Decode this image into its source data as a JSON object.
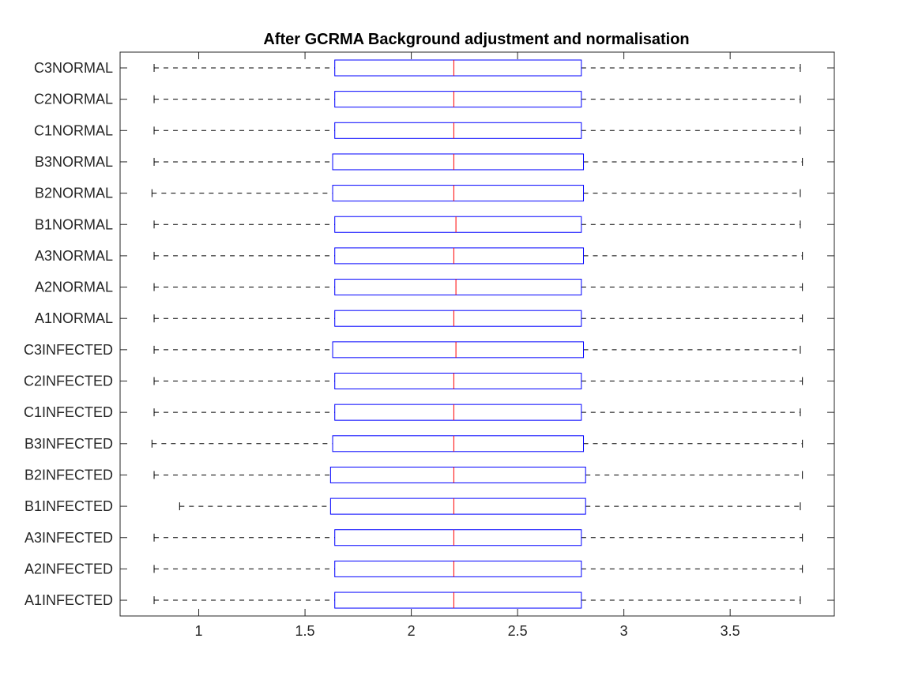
{
  "chart_data": {
    "type": "boxplot",
    "orientation": "horizontal",
    "title": "After GCRMA Background adjustment and normalisation",
    "xlabel": "",
    "ylabel": "",
    "xlim": [
      0.63,
      3.99
    ],
    "xticks": [
      1,
      1.5,
      2,
      2.5,
      3,
      3.5
    ],
    "xtick_labels": [
      "1",
      "1.5",
      "2",
      "2.5",
      "3",
      "3.5"
    ],
    "grid": false,
    "colors": {
      "box": "#0000ff",
      "median": "#ff0000",
      "whisker": "#000000",
      "axis": "#262626"
    },
    "categories": [
      "C3NORMAL",
      "C2NORMAL",
      "C1NORMAL",
      "B3NORMAL",
      "B2NORMAL",
      "B1NORMAL",
      "A3NORMAL",
      "A2NORMAL",
      "A1NORMAL",
      "C3INFECTED",
      "C2INFECTED",
      "C1INFECTED",
      "B3INFECTED",
      "B2INFECTED",
      "B1INFECTED",
      "A3INFECTED",
      "A2INFECTED",
      "A1INFECTED"
    ],
    "boxes": [
      {
        "label": "C3NORMAL",
        "whisker_low": 0.79,
        "q1": 1.64,
        "median": 2.2,
        "q3": 2.8,
        "whisker_high": 3.83
      },
      {
        "label": "C2NORMAL",
        "whisker_low": 0.79,
        "q1": 1.64,
        "median": 2.2,
        "q3": 2.8,
        "whisker_high": 3.83
      },
      {
        "label": "C1NORMAL",
        "whisker_low": 0.79,
        "q1": 1.64,
        "median": 2.2,
        "q3": 2.8,
        "whisker_high": 3.83
      },
      {
        "label": "B3NORMAL",
        "whisker_low": 0.79,
        "q1": 1.63,
        "median": 2.2,
        "q3": 2.81,
        "whisker_high": 3.84
      },
      {
        "label": "B2NORMAL",
        "whisker_low": 0.78,
        "q1": 1.63,
        "median": 2.2,
        "q3": 2.81,
        "whisker_high": 3.83
      },
      {
        "label": "B1NORMAL",
        "whisker_low": 0.79,
        "q1": 1.64,
        "median": 2.21,
        "q3": 2.8,
        "whisker_high": 3.83
      },
      {
        "label": "A3NORMAL",
        "whisker_low": 0.79,
        "q1": 1.64,
        "median": 2.2,
        "q3": 2.81,
        "whisker_high": 3.84
      },
      {
        "label": "A2NORMAL",
        "whisker_low": 0.79,
        "q1": 1.64,
        "median": 2.21,
        "q3": 2.8,
        "whisker_high": 3.84
      },
      {
        "label": "A1NORMAL",
        "whisker_low": 0.79,
        "q1": 1.64,
        "median": 2.2,
        "q3": 2.8,
        "whisker_high": 3.84
      },
      {
        "label": "C3INFECTED",
        "whisker_low": 0.79,
        "q1": 1.63,
        "median": 2.21,
        "q3": 2.81,
        "whisker_high": 3.83
      },
      {
        "label": "C2INFECTED",
        "whisker_low": 0.79,
        "q1": 1.64,
        "median": 2.2,
        "q3": 2.8,
        "whisker_high": 3.84
      },
      {
        "label": "C1INFECTED",
        "whisker_low": 0.79,
        "q1": 1.64,
        "median": 2.2,
        "q3": 2.8,
        "whisker_high": 3.83
      },
      {
        "label": "B3INFECTED",
        "whisker_low": 0.78,
        "q1": 1.63,
        "median": 2.2,
        "q3": 2.81,
        "whisker_high": 3.84
      },
      {
        "label": "B2INFECTED",
        "whisker_low": 0.79,
        "q1": 1.62,
        "median": 2.2,
        "q3": 2.82,
        "whisker_high": 3.84
      },
      {
        "label": "B1INFECTED",
        "whisker_low": 0.91,
        "q1": 1.62,
        "median": 2.2,
        "q3": 2.82,
        "whisker_high": 3.83
      },
      {
        "label": "A3INFECTED",
        "whisker_low": 0.79,
        "q1": 1.64,
        "median": 2.2,
        "q3": 2.8,
        "whisker_high": 3.84
      },
      {
        "label": "A2INFECTED",
        "whisker_low": 0.79,
        "q1": 1.64,
        "median": 2.2,
        "q3": 2.8,
        "whisker_high": 3.84
      },
      {
        "label": "A1INFECTED",
        "whisker_low": 0.79,
        "q1": 1.64,
        "median": 2.2,
        "q3": 2.8,
        "whisker_high": 3.83
      }
    ]
  }
}
